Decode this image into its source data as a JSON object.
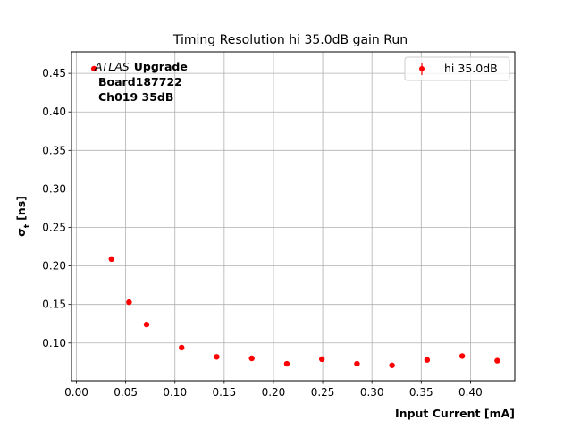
{
  "chart_data": {
    "type": "scatter",
    "title": "Timing Resolution hi 35.0dB gain Run",
    "xlabel": "Input Current [mA]",
    "ylabel_main": "σ",
    "ylabel_sub": "t",
    "ylabel_unit": "[ns]",
    "xlim": [
      -0.005,
      0.445
    ],
    "ylim": [
      0.051,
      0.478
    ],
    "xticks": [
      "0.00",
      "0.05",
      "0.10",
      "0.15",
      "0.20",
      "0.25",
      "0.30",
      "0.35",
      "0.40"
    ],
    "yticks": [
      "0.10",
      "0.15",
      "0.20",
      "0.25",
      "0.30",
      "0.35",
      "0.40",
      "0.45"
    ],
    "grid": true,
    "legend_position": "top-right",
    "annotation": {
      "experiment": "ATLAS",
      "tag": "Upgrade",
      "board": "Board187722",
      "channel": "Ch019 35dB"
    },
    "series": [
      {
        "name": "hi 35.0dB",
        "color": "#ff0000",
        "x": [
          0.0178,
          0.0356,
          0.0534,
          0.0712,
          0.1068,
          0.1424,
          0.178,
          0.2136,
          0.2492,
          0.2848,
          0.3204,
          0.356,
          0.3916,
          0.4272
        ],
        "y": [
          0.456,
          0.209,
          0.153,
          0.124,
          0.094,
          0.082,
          0.08,
          0.073,
          0.079,
          0.073,
          0.071,
          0.078,
          0.083,
          0.077
        ]
      }
    ]
  }
}
